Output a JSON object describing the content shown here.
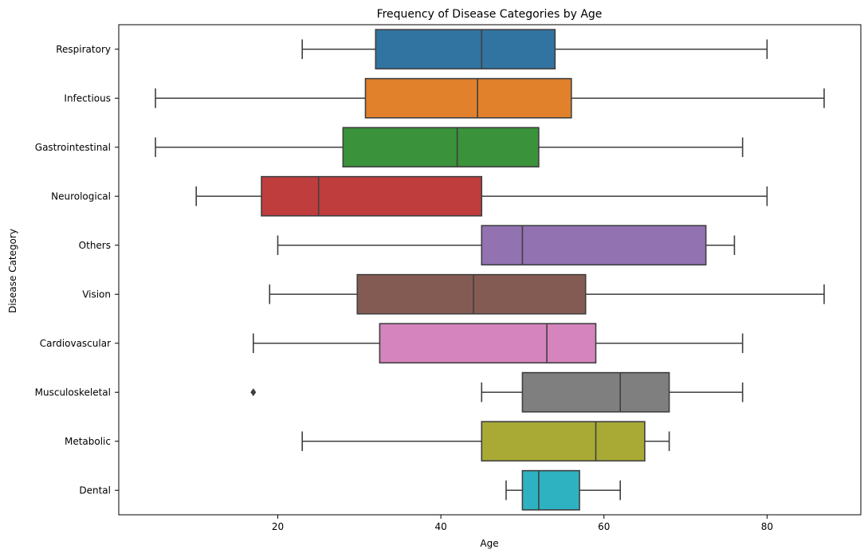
{
  "chart_data": {
    "type": "boxplot",
    "orientation": "horizontal",
    "title": "Frequency of Disease Categories by Age",
    "xlabel": "Age",
    "ylabel": "Disease Category",
    "xlim": [
      0.5,
      91.5
    ],
    "xticks": [
      20,
      40,
      60,
      80
    ],
    "grid": false,
    "categories": [
      "Respiratory",
      "Infectious",
      "Gastrointestinal",
      "Neurological",
      "Others",
      "Vision",
      "Cardiovascular",
      "Musculoskeletal",
      "Metabolic",
      "Dental"
    ],
    "colors": [
      "#3274a1",
      "#e1812c",
      "#3a923a",
      "#c03d3e",
      "#9372b2",
      "#845b53",
      "#d684bd",
      "#7f7f7f",
      "#a9aa35",
      "#2eb2c2"
    ],
    "edge_color": "#3f3f3f",
    "boxes": [
      {
        "whisker_low": 23,
        "q1": 32,
        "median": 45,
        "q3": 54,
        "whisker_high": 80,
        "outliers": []
      },
      {
        "whisker_low": 5,
        "q1": 30.75,
        "median": 44.5,
        "q3": 56,
        "whisker_high": 87,
        "outliers": []
      },
      {
        "whisker_low": 5,
        "q1": 28,
        "median": 42,
        "q3": 52,
        "whisker_high": 77,
        "outliers": []
      },
      {
        "whisker_low": 10,
        "q1": 18,
        "median": 25,
        "q3": 45,
        "whisker_high": 80,
        "outliers": []
      },
      {
        "whisker_low": 20,
        "q1": 45,
        "median": 50,
        "q3": 72.5,
        "whisker_high": 76,
        "outliers": []
      },
      {
        "whisker_low": 19,
        "q1": 29.75,
        "median": 44,
        "q3": 57.75,
        "whisker_high": 87,
        "outliers": []
      },
      {
        "whisker_low": 17,
        "q1": 32.5,
        "median": 53,
        "q3": 59,
        "whisker_high": 77,
        "outliers": []
      },
      {
        "whisker_low": 45,
        "q1": 50,
        "median": 62,
        "q3": 68,
        "whisker_high": 77,
        "outliers": [
          17
        ]
      },
      {
        "whisker_low": 23,
        "q1": 45,
        "median": 59,
        "q3": 65,
        "whisker_high": 68,
        "outliers": []
      },
      {
        "whisker_low": 48,
        "q1": 50,
        "median": 52,
        "q3": 57,
        "whisker_high": 62,
        "outliers": []
      }
    ]
  }
}
